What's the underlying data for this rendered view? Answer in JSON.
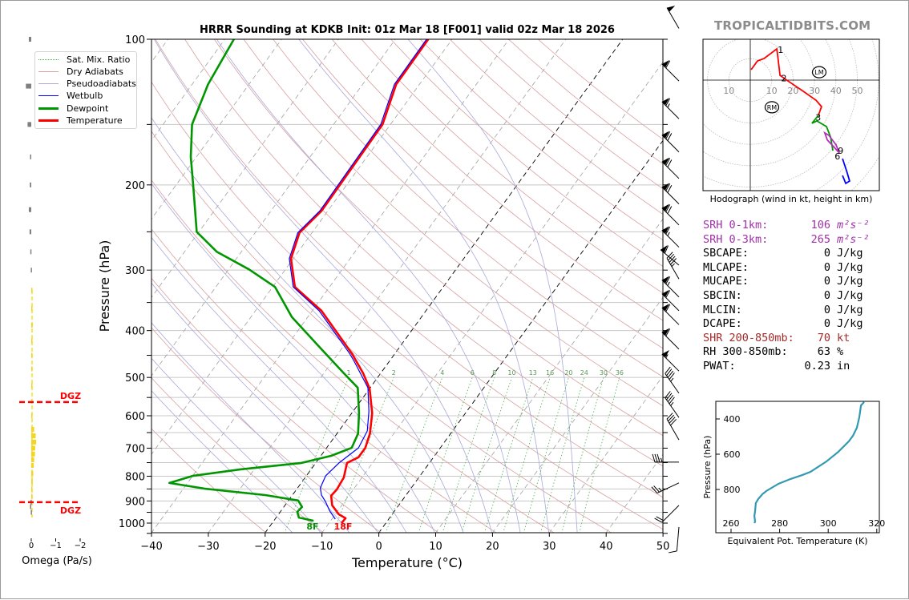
{
  "brand": "TROPICALTIDBITS.COM",
  "chart_data": [
    {
      "type": "line",
      "name": "skew-t",
      "title": "HRRR Sounding at KDKB Init: 01z Mar 18 [F001] valid 02z Mar 18 2026",
      "xlabel": "Temperature (°C)",
      "ylabel": "Pressure (hPa)",
      "xlim": [
        -40,
        50
      ],
      "ylim": [
        1048,
        100
      ],
      "x_ticks": [
        "−40",
        "−30",
        "−20",
        "−10",
        "0",
        "10",
        "20",
        "30",
        "40",
        "50"
      ],
      "x_tick_values": [
        -40,
        -30,
        -20,
        -10,
        0,
        10,
        20,
        30,
        40,
        50
      ],
      "y_ticks": [
        100,
        200,
        300,
        400,
        500,
        600,
        700,
        800,
        900,
        1000
      ],
      "isobar_step_hpa": 50,
      "isotherm_step_c": 10,
      "highlighted_isotherms_c": [
        0,
        -20
      ],
      "dry_adiabat_theta_k": [
        250,
        260,
        270,
        280,
        290,
        300,
        310,
        320,
        330,
        340,
        350,
        360,
        370,
        380,
        390,
        400,
        410,
        420,
        430,
        440,
        450,
        460
      ],
      "moist_adiabat_start_c": [
        -15,
        -10,
        -5,
        0,
        5,
        10,
        15,
        20,
        25,
        30,
        35
      ],
      "mixing_ratio_gkg": [
        1,
        2,
        4,
        6,
        8,
        10,
        13,
        16,
        20,
        24,
        30,
        36
      ],
      "mixing_ratio_labels": [
        "1",
        "2",
        "4",
        "6",
        "8",
        "10",
        "13",
        "16",
        "20",
        "24",
        "30",
        "36"
      ],
      "legend": [
        {
          "label": "Sat. Mix. Ratio",
          "color": "#4caf50",
          "style": "dotted"
        },
        {
          "label": "Dry Adiabats",
          "color": "#d9a0a0",
          "style": "solid"
        },
        {
          "label": "Pseudoadiabats",
          "color": "#a8a8dc",
          "style": "solid"
        },
        {
          "label": "Wetbulb",
          "color": "#0000ff",
          "style": "solid"
        },
        {
          "label": "Dewpoint",
          "color": "#009600",
          "style": "thick"
        },
        {
          "label": "Temperature",
          "color": "#ff0000",
          "style": "thick"
        }
      ],
      "legend_position": "upper-left",
      "series": [
        {
          "name": "Temperature",
          "color": "#ff0000",
          "points": [
            [
              1000,
              -7.8
            ],
            [
              977,
              -7.7
            ],
            [
              959,
              -9.4
            ],
            [
              919,
              -11.7
            ],
            [
              878,
              -13.1
            ],
            [
              852,
              -12.9
            ],
            [
              805,
              -13.2
            ],
            [
              751,
              -14.5
            ],
            [
              731,
              -13.2
            ],
            [
              699,
              -13.2
            ],
            [
              653,
              -14.2
            ],
            [
              593,
              -16.4
            ],
            [
              527,
              -20.0
            ],
            [
              490,
              -23.1
            ],
            [
              446,
              -27.6
            ],
            [
              364,
              -38.4
            ],
            [
              325,
              -46.1
            ],
            [
              284,
              -50.4
            ],
            [
              251,
              -52.2
            ],
            [
              226,
              -51.1
            ],
            [
              150,
              -51.4
            ],
            [
              124,
              -54.1
            ],
            [
              100,
              -54.2
            ]
          ]
        },
        {
          "name": "Dewpoint",
          "color": "#009600",
          "points": [
            [
              989,
              -13.0
            ],
            [
              974,
              -16.0
            ],
            [
              948,
              -17.0
            ],
            [
              926,
              -16.8
            ],
            [
              898,
              -18.3
            ],
            [
              875,
              -24.8
            ],
            [
              849,
              -36.2
            ],
            [
              826,
              -43.2
            ],
            [
              799,
              -40.0
            ],
            [
              774,
              -32.3
            ],
            [
              751,
              -22.5
            ],
            [
              726,
              -18.2
            ],
            [
              699,
              -15.6
            ],
            [
              653,
              -16.3
            ],
            [
              593,
              -18.7
            ],
            [
              525,
              -22.2
            ],
            [
              490,
              -26.5
            ],
            [
              437,
              -33.5
            ],
            [
              375,
              -42.8
            ],
            [
              325,
              -49.6
            ],
            [
              299,
              -56.4
            ],
            [
              275,
              -64.3
            ],
            [
              250,
              -70.4
            ],
            [
              200,
              -77.0
            ],
            [
              175,
              -81.0
            ],
            [
              150,
              -84.9
            ],
            [
              124,
              -87.2
            ],
            [
              100,
              -88.4
            ]
          ]
        },
        {
          "name": "Wetbulb",
          "color": "#0000ff",
          "points": [
            [
              981,
              -9.4
            ],
            [
              944,
              -11.4
            ],
            [
              902,
              -13.4
            ],
            [
              875,
              -14.9
            ],
            [
              846,
              -16.0
            ],
            [
              799,
              -16.6
            ],
            [
              751,
              -15.9
            ],
            [
              699,
              -14.4
            ],
            [
              645,
              -15.0
            ],
            [
              588,
              -17.2
            ],
            [
              525,
              -20.4
            ],
            [
              463,
              -26.2
            ],
            [
              446,
              -28.0
            ],
            [
              364,
              -38.8
            ],
            [
              325,
              -46.4
            ],
            [
              284,
              -50.7
            ],
            [
              251,
              -52.5
            ],
            [
              226,
              -51.4
            ],
            [
              150,
              -51.7
            ],
            [
              124,
              -54.4
            ],
            [
              100,
              -54.5
            ]
          ]
        }
      ],
      "surface_labels": {
        "dewpoint": "8F",
        "temperature": "18F"
      },
      "wind_barbs": [
        {
          "p": 95,
          "dir": 330,
          "spd": 50
        },
        {
          "p": 122,
          "dir": 315,
          "spd": 60
        },
        {
          "p": 146,
          "dir": 315,
          "spd": 65
        },
        {
          "p": 171,
          "dir": 315,
          "spd": 70
        },
        {
          "p": 194,
          "dir": 315,
          "spd": 70
        },
        {
          "p": 219,
          "dir": 315,
          "spd": 70
        },
        {
          "p": 242,
          "dir": 315,
          "spd": 70
        },
        {
          "p": 269,
          "dir": 315,
          "spd": 65
        },
        {
          "p": 293,
          "dir": 310,
          "spd": 60
        },
        {
          "p": 313,
          "dir": 330,
          "spd": 45
        },
        {
          "p": 341,
          "dir": 315,
          "spd": 65
        },
        {
          "p": 364,
          "dir": 315,
          "spd": 60
        },
        {
          "p": 389,
          "dir": 315,
          "spd": 60
        },
        {
          "p": 437,
          "dir": 315,
          "spd": 60
        },
        {
          "p": 485,
          "dir": 315,
          "spd": 55
        },
        {
          "p": 539,
          "dir": 325,
          "spd": 45
        },
        {
          "p": 605,
          "dir": 325,
          "spd": 45
        },
        {
          "p": 673,
          "dir": 330,
          "spd": 40
        },
        {
          "p": 748,
          "dir": 270,
          "spd": 35
        },
        {
          "p": 826,
          "dir": 245,
          "spd": 25
        },
        {
          "p": 919,
          "dir": 225,
          "spd": 20
        },
        {
          "p": 1019,
          "dir": 185,
          "spd": 10
        }
      ]
    },
    {
      "type": "line",
      "name": "omega",
      "xlabel": "Omega (Pa/s)",
      "x_ticks": [
        "0",
        "−1",
        "−2"
      ],
      "x_tick_values": [
        0,
        -1,
        -2
      ],
      "dgz_label": "DGZ",
      "dgz_pressures_hpa": [
        562,
        905
      ],
      "values": [
        [
          100,
          0.1
        ],
        [
          125,
          0.22
        ],
        [
          150,
          0.15
        ],
        [
          175,
          0.05
        ],
        [
          200,
          0.06
        ],
        [
          225,
          0.1
        ],
        [
          250,
          0.07
        ],
        [
          275,
          0.04
        ],
        [
          300,
          0.02
        ],
        [
          330,
          -0.03
        ],
        [
          360,
          -0.05
        ],
        [
          390,
          -0.06
        ],
        [
          420,
          -0.05
        ],
        [
          450,
          -0.04
        ],
        [
          480,
          -0.04
        ],
        [
          520,
          -0.03
        ],
        [
          560,
          -0.02
        ],
        [
          600,
          -0.03
        ],
        [
          640,
          -0.12
        ],
        [
          660,
          -0.18
        ],
        [
          680,
          -0.2
        ],
        [
          700,
          -0.16
        ],
        [
          720,
          -0.15
        ],
        [
          740,
          -0.12
        ],
        [
          760,
          -0.1
        ],
        [
          790,
          -0.08
        ],
        [
          820,
          -0.06
        ],
        [
          850,
          -0.05
        ],
        [
          880,
          -0.02
        ],
        [
          905,
          0.03
        ],
        [
          925,
          0.05
        ],
        [
          950,
          0.02
        ]
      ]
    },
    {
      "type": "line",
      "name": "hodograph",
      "xlabel": "Hodograph (wind in kt, height in km)",
      "ring_step_kt": 10,
      "ring_labels": [
        "10",
        "10",
        "20",
        "30",
        "40",
        "50"
      ],
      "ring_label_values": [
        -10,
        10,
        20,
        30,
        40,
        50
      ],
      "segments": [
        {
          "layer": "0-3 km",
          "color": "#ff0000",
          "uv": [
            [
              0.4,
              4.9
            ],
            [
              3.4,
              9.0
            ],
            [
              6.4,
              10.1
            ],
            [
              12.4,
              14.6
            ],
            [
              13.1,
              9.0
            ],
            [
              13.9,
              2.2
            ],
            [
              17.6,
              -0.4
            ],
            [
              24.3,
              -4.9
            ],
            [
              30.7,
              -9.4
            ],
            [
              33.3,
              -12.4
            ],
            [
              31.8,
              -16.5
            ]
          ]
        },
        {
          "layer": "3-6 km",
          "color": "#009600",
          "uv": [
            [
              31.8,
              -16.5
            ],
            [
              28.8,
              -20.2
            ],
            [
              31.1,
              -19.1
            ],
            [
              35.6,
              -21.7
            ],
            [
              37.5,
              -26.6
            ],
            [
              38.6,
              -33.0
            ]
          ]
        },
        {
          "layer": "6-9 km",
          "color": "#b030b8",
          "uv": [
            [
              41.6,
              -34.1
            ],
            [
              40.1,
              -30.3
            ],
            [
              36.7,
              -25.8
            ],
            [
              34.8,
              -24.7
            ],
            [
              36.0,
              -28.0
            ],
            [
              39.3,
              -31.5
            ],
            [
              41.6,
              -34.1
            ]
          ]
        },
        {
          "layer": "9-12 km",
          "color": "#0000ff",
          "uv": [
            [
              43.1,
              -36.7
            ],
            [
              45.3,
              -43.4
            ],
            [
              46.4,
              -47.2
            ],
            [
              44.6,
              -48.3
            ],
            [
              43.1,
              -44.6
            ]
          ]
        }
      ],
      "height_labels": [
        {
          "text": "1",
          "uv": [
            13.4,
            14.3
          ]
        },
        {
          "text": "2",
          "uv": [
            15.0,
            1.0
          ]
        },
        {
          "text": "3",
          "uv": [
            31.0,
            -17.5
          ]
        },
        {
          "text": "6",
          "uv": [
            40.0,
            -35.5
          ]
        },
        {
          "text": "9",
          "uv": [
            41.5,
            -33.0
          ]
        }
      ],
      "storm_motion": [
        {
          "text": "RM",
          "uv": [
            10.1,
            -12.7
          ]
        },
        {
          "text": "LM",
          "uv": [
            32.2,
            3.7
          ]
        }
      ]
    },
    {
      "type": "line",
      "name": "theta-e",
      "xlabel": "Equivalent Pot. Temperature (K)",
      "ylabel": "Pressure (hPa)",
      "xlim": [
        253.7,
        321
      ],
      "ylim": [
        1045,
        300
      ],
      "x_ticks": [
        "260",
        "280",
        "300",
        "320"
      ],
      "x_tick_values": [
        260,
        280,
        300,
        320
      ],
      "y_ticks": [
        "400",
        "600",
        "800"
      ],
      "y_tick_values": [
        400,
        600,
        800
      ],
      "color": "#3399b3",
      "points": [
        [
          991,
          269.6
        ],
        [
          982,
          269.9
        ],
        [
          950,
          269.6
        ],
        [
          923,
          269.9
        ],
        [
          877,
          270.2
        ],
        [
          854,
          271.2
        ],
        [
          827,
          272.9
        ],
        [
          809,
          274.5
        ],
        [
          768,
          279.5
        ],
        [
          741,
          284.4
        ],
        [
          718,
          289.4
        ],
        [
          700,
          292.7
        ],
        [
          641,
          299.3
        ],
        [
          586,
          304.2
        ],
        [
          527,
          308.5
        ],
        [
          495,
          310.2
        ],
        [
          450,
          311.8
        ],
        [
          391,
          312.8
        ],
        [
          323,
          313.5
        ],
        [
          304,
          314.8
        ]
      ]
    }
  ],
  "stats": [
    {
      "label": "SRH 0-1km:",
      "value": "106",
      "unit": "m²s⁻²",
      "kind": "srh"
    },
    {
      "label": "SRH 0-3km:",
      "value": "265",
      "unit": "m²s⁻²",
      "kind": "srh"
    },
    {
      "label": "SBCAPE:",
      "value": "0",
      "unit": "J/kg",
      "kind": "plain"
    },
    {
      "label": "MLCAPE:",
      "value": "0",
      "unit": "J/kg",
      "kind": "plain"
    },
    {
      "label": "MUCAPE:",
      "value": "0",
      "unit": "J/kg",
      "kind": "plain"
    },
    {
      "label": "SBCIN:",
      "value": "0",
      "unit": "J/kg",
      "kind": "plain"
    },
    {
      "label": "MLCIN:",
      "value": "0",
      "unit": "J/kg",
      "kind": "plain"
    },
    {
      "label": "DCAPE:",
      "value": "0",
      "unit": "J/kg",
      "kind": "plain"
    },
    {
      "label": "SHR 200-850mb:",
      "value": "70",
      "unit": "kt",
      "kind": "shr"
    },
    {
      "label": "RH 300-850mb:",
      "value": "63",
      "unit": "%",
      "kind": "plain"
    },
    {
      "label": "PWAT:",
      "value": "0.23",
      "unit": "in",
      "kind": "plain"
    }
  ]
}
